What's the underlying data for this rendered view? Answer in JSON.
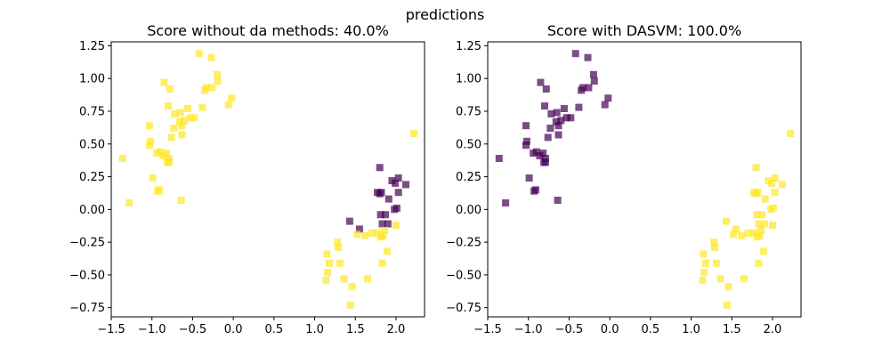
{
  "figure": {
    "suptitle": "predictions"
  },
  "chart_data": [
    {
      "type": "scatter",
      "title": "Score without da methods: 40.0%",
      "xlabel": "",
      "ylabel": "",
      "xlim": [
        -1.5,
        2.35
      ],
      "ylim": [
        -0.82,
        1.28
      ],
      "xticks": [
        -1.5,
        -1.0,
        -0.5,
        0.0,
        0.5,
        1.0,
        1.5,
        2.0
      ],
      "xtick_labels": [
        "−1.5",
        "−1.0",
        "−0.5",
        "0.0",
        "0.5",
        "1.0",
        "1.5",
        "2.0"
      ],
      "yticks": [
        -0.75,
        -0.5,
        -0.25,
        0.0,
        0.25,
        0.5,
        0.75,
        1.0,
        1.25
      ],
      "ytick_labels": [
        "−0.75",
        "−0.50",
        "−0.25",
        "0.00",
        "0.25",
        "0.50",
        "0.75",
        "1.00",
        "1.25"
      ],
      "marker": "square",
      "alpha": 0.7,
      "class_colors": {
        "0": "#440154",
        "1": "#fde725"
      },
      "points": [
        [
          -0.42,
          1.19,
          1
        ],
        [
          -0.27,
          1.16,
          1
        ],
        [
          -0.2,
          1.03,
          1
        ],
        [
          -0.33,
          0.93,
          1
        ],
        [
          -0.26,
          0.93,
          1
        ],
        [
          -0.19,
          0.98,
          1
        ],
        [
          -0.35,
          0.91,
          1
        ],
        [
          -0.02,
          0.85,
          1
        ],
        [
          -0.06,
          0.8,
          1
        ],
        [
          -0.85,
          0.97,
          1
        ],
        [
          -0.78,
          0.92,
          1
        ],
        [
          -0.8,
          0.79,
          1
        ],
        [
          -0.72,
          0.73,
          1
        ],
        [
          -0.65,
          0.74,
          1
        ],
        [
          -0.56,
          0.77,
          1
        ],
        [
          -0.38,
          0.78,
          1
        ],
        [
          -0.66,
          0.67,
          1
        ],
        [
          -0.6,
          0.68,
          1
        ],
        [
          -0.53,
          0.7,
          1
        ],
        [
          -0.48,
          0.7,
          1
        ],
        [
          -1.03,
          0.64,
          1
        ],
        [
          -0.73,
          0.62,
          1
        ],
        [
          -0.63,
          0.64,
          1
        ],
        [
          -0.63,
          0.57,
          1
        ],
        [
          -0.76,
          0.55,
          1
        ],
        [
          -1.02,
          0.52,
          1
        ],
        [
          -1.03,
          0.49,
          1
        ],
        [
          -0.94,
          0.43,
          1
        ],
        [
          -0.9,
          0.44,
          1
        ],
        [
          -0.86,
          0.41,
          1
        ],
        [
          -0.82,
          0.43,
          1
        ],
        [
          -0.79,
          0.39,
          1
        ],
        [
          -0.81,
          0.36,
          1
        ],
        [
          -0.79,
          0.36,
          1
        ],
        [
          -1.36,
          0.39,
          1
        ],
        [
          -0.99,
          0.24,
          1
        ],
        [
          -0.93,
          0.14,
          1
        ],
        [
          -0.91,
          0.15,
          1
        ],
        [
          -1.28,
          0.05,
          1
        ],
        [
          -0.64,
          0.07,
          1
        ],
        [
          1.8,
          0.32,
          0
        ],
        [
          1.95,
          0.22,
          0
        ],
        [
          2.03,
          0.24,
          0
        ],
        [
          1.99,
          0.2,
          0
        ],
        [
          2.12,
          0.19,
          0
        ],
        [
          1.77,
          0.13,
          0
        ],
        [
          1.82,
          0.13,
          0
        ],
        [
          1.8,
          0.12,
          0
        ],
        [
          2.03,
          0.13,
          0
        ],
        [
          1.91,
          0.08,
          0
        ],
        [
          2.01,
          0.01,
          0
        ],
        [
          1.98,
          0.0,
          0
        ],
        [
          1.81,
          -0.04,
          0
        ],
        [
          1.87,
          -0.04,
          0
        ],
        [
          1.43,
          -0.09,
          0
        ],
        [
          1.83,
          -0.11,
          0
        ],
        [
          1.9,
          -0.11,
          0
        ],
        [
          1.55,
          -0.15,
          0
        ],
        [
          2.0,
          -0.12,
          1
        ],
        [
          1.86,
          -0.16,
          1
        ],
        [
          1.7,
          -0.18,
          1
        ],
        [
          1.77,
          -0.18,
          1
        ],
        [
          1.52,
          -0.19,
          1
        ],
        [
          1.62,
          -0.2,
          1
        ],
        [
          1.84,
          -0.2,
          1
        ],
        [
          1.81,
          -0.21,
          1
        ],
        [
          1.28,
          -0.25,
          1
        ],
        [
          1.29,
          -0.29,
          1
        ],
        [
          1.89,
          -0.32,
          1
        ],
        [
          1.15,
          -0.34,
          1
        ],
        [
          1.18,
          -0.41,
          1
        ],
        [
          1.31,
          -0.41,
          1
        ],
        [
          1.83,
          -0.41,
          1
        ],
        [
          1.16,
          -0.48,
          1
        ],
        [
          1.36,
          -0.53,
          1
        ],
        [
          1.65,
          -0.53,
          1
        ],
        [
          1.14,
          -0.54,
          1
        ],
        [
          1.46,
          -0.59,
          1
        ],
        [
          1.44,
          -0.73,
          1
        ],
        [
          2.22,
          0.58,
          1
        ]
      ]
    },
    {
      "type": "scatter",
      "title": "Score with DASVM: 100.0%",
      "xlabel": "",
      "ylabel": "",
      "xlim": [
        -1.5,
        2.35
      ],
      "ylim": [
        -0.82,
        1.28
      ],
      "xticks": [
        -1.5,
        -1.0,
        -0.5,
        0.0,
        0.5,
        1.0,
        1.5,
        2.0
      ],
      "xtick_labels": [
        "−1.5",
        "−1.0",
        "−0.5",
        "0.0",
        "0.5",
        "1.0",
        "1.5",
        "2.0"
      ],
      "yticks": [
        -0.75,
        -0.5,
        -0.25,
        0.0,
        0.25,
        0.5,
        0.75,
        1.0,
        1.25
      ],
      "ytick_labels": [
        "−0.75",
        "−0.50",
        "−0.25",
        "0.00",
        "0.25",
        "0.50",
        "0.75",
        "1.00",
        "1.25"
      ],
      "marker": "square",
      "alpha": 0.7,
      "class_colors": {
        "0": "#440154",
        "1": "#fde725"
      },
      "points": [
        [
          -0.42,
          1.19,
          0
        ],
        [
          -0.27,
          1.16,
          0
        ],
        [
          -0.2,
          1.03,
          0
        ],
        [
          -0.33,
          0.93,
          0
        ],
        [
          -0.26,
          0.93,
          0
        ],
        [
          -0.19,
          0.98,
          0
        ],
        [
          -0.35,
          0.91,
          0
        ],
        [
          -0.02,
          0.85,
          0
        ],
        [
          -0.06,
          0.8,
          0
        ],
        [
          -0.85,
          0.97,
          0
        ],
        [
          -0.78,
          0.92,
          0
        ],
        [
          -0.8,
          0.79,
          0
        ],
        [
          -0.72,
          0.73,
          0
        ],
        [
          -0.65,
          0.74,
          0
        ],
        [
          -0.56,
          0.77,
          0
        ],
        [
          -0.38,
          0.78,
          0
        ],
        [
          -0.66,
          0.67,
          0
        ],
        [
          -0.6,
          0.68,
          0
        ],
        [
          -0.53,
          0.7,
          0
        ],
        [
          -0.48,
          0.7,
          0
        ],
        [
          -1.03,
          0.64,
          0
        ],
        [
          -0.73,
          0.62,
          0
        ],
        [
          -0.63,
          0.64,
          0
        ],
        [
          -0.63,
          0.57,
          0
        ],
        [
          -0.76,
          0.55,
          0
        ],
        [
          -1.02,
          0.52,
          0
        ],
        [
          -1.03,
          0.49,
          0
        ],
        [
          -0.94,
          0.43,
          0
        ],
        [
          -0.9,
          0.44,
          0
        ],
        [
          -0.86,
          0.41,
          0
        ],
        [
          -0.82,
          0.43,
          0
        ],
        [
          -0.79,
          0.39,
          0
        ],
        [
          -0.81,
          0.36,
          0
        ],
        [
          -0.79,
          0.36,
          0
        ],
        [
          -1.36,
          0.39,
          0
        ],
        [
          -0.99,
          0.24,
          0
        ],
        [
          -0.93,
          0.14,
          0
        ],
        [
          -0.91,
          0.15,
          0
        ],
        [
          -1.28,
          0.05,
          0
        ],
        [
          -0.64,
          0.07,
          0
        ],
        [
          1.8,
          0.32,
          1
        ],
        [
          1.95,
          0.22,
          1
        ],
        [
          2.03,
          0.24,
          1
        ],
        [
          1.99,
          0.2,
          1
        ],
        [
          2.12,
          0.19,
          1
        ],
        [
          1.77,
          0.13,
          1
        ],
        [
          1.82,
          0.13,
          1
        ],
        [
          1.8,
          0.12,
          1
        ],
        [
          2.03,
          0.13,
          1
        ],
        [
          1.91,
          0.08,
          1
        ],
        [
          2.01,
          0.01,
          1
        ],
        [
          1.98,
          0.0,
          1
        ],
        [
          1.81,
          -0.04,
          1
        ],
        [
          1.87,
          -0.04,
          1
        ],
        [
          1.43,
          -0.09,
          1
        ],
        [
          1.83,
          -0.11,
          1
        ],
        [
          1.9,
          -0.11,
          1
        ],
        [
          1.55,
          -0.15,
          1
        ],
        [
          2.0,
          -0.12,
          1
        ],
        [
          1.86,
          -0.16,
          1
        ],
        [
          1.7,
          -0.18,
          1
        ],
        [
          1.77,
          -0.18,
          1
        ],
        [
          1.52,
          -0.19,
          1
        ],
        [
          1.62,
          -0.2,
          1
        ],
        [
          1.84,
          -0.2,
          1
        ],
        [
          1.81,
          -0.21,
          1
        ],
        [
          1.28,
          -0.25,
          1
        ],
        [
          1.29,
          -0.29,
          1
        ],
        [
          1.89,
          -0.32,
          1
        ],
        [
          1.15,
          -0.34,
          1
        ],
        [
          1.18,
          -0.41,
          1
        ],
        [
          1.31,
          -0.41,
          1
        ],
        [
          1.83,
          -0.41,
          1
        ],
        [
          1.16,
          -0.48,
          1
        ],
        [
          1.36,
          -0.53,
          1
        ],
        [
          1.65,
          -0.53,
          1
        ],
        [
          1.14,
          -0.54,
          1
        ],
        [
          1.46,
          -0.59,
          1
        ],
        [
          1.44,
          -0.73,
          1
        ],
        [
          2.22,
          0.58,
          1
        ]
      ]
    }
  ]
}
